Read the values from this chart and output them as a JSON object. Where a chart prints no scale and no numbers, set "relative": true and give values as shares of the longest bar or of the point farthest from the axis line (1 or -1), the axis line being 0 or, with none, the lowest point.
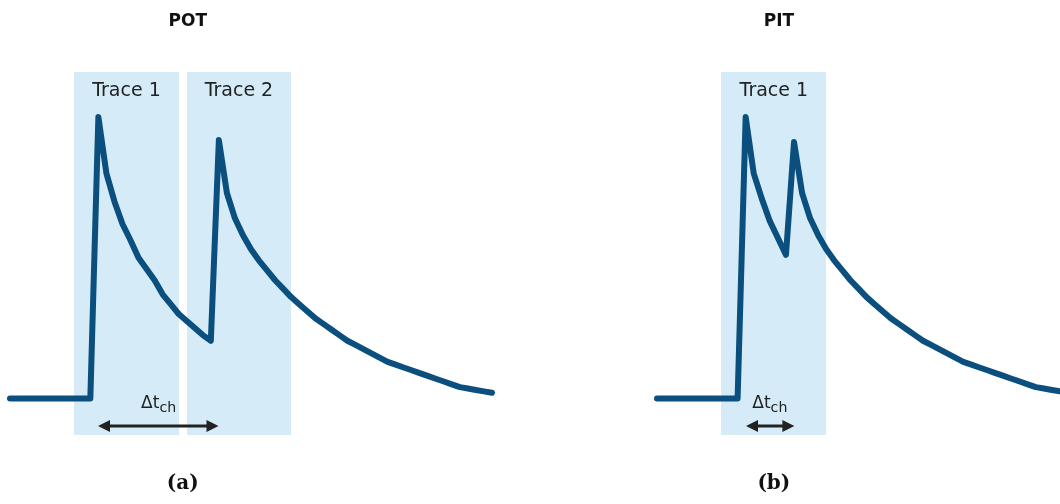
{
  "chart_data": [
    {
      "type": "line",
      "title": "POT",
      "relative": true,
      "marker": "none",
      "line_style": "solid",
      "categories": [
        null,
        null,
        null,
        null,
        null,
        null,
        null,
        null,
        null,
        null,
        null,
        null,
        null,
        null,
        null,
        null,
        null,
        null,
        null,
        null,
        null,
        null,
        null,
        null,
        null,
        null,
        null,
        null,
        null,
        null,
        null,
        null,
        null,
        null,
        null,
        null,
        null,
        null,
        null,
        null,
        null,
        null,
        null,
        null,
        null,
        null,
        null,
        null,
        null,
        null,
        null,
        null,
        null,
        null,
        null,
        null,
        null,
        null,
        null,
        null,
        null
      ],
      "series": [
        {
          "color": "#0a4f7e",
          "values": [
            0,
            0,
            0,
            0,
            0,
            0,
            0,
            0,
            0,
            0,
            0,
            1,
            0.8,
            0.7,
            0.62,
            0.562,
            0.5,
            0.46,
            0.42,
            0.37,
            0.335,
            0.3,
            0.275,
            0.25,
            0.225,
            0.205,
            0.918,
            0.73,
            0.64,
            0.58,
            0.53,
            0.49,
            0.455,
            0.42,
            0.39,
            0.36,
            0.335,
            0.31,
            0.285,
            0.265,
            0.245,
            0.225,
            0.205,
            0.19,
            0.175,
            0.16,
            0.145,
            0.13,
            0.12,
            0.11,
            0.1,
            0.09,
            0.08,
            0.07,
            0.06,
            0.05,
            0.04,
            0.035,
            0.03,
            0.025,
            0.02
          ]
        }
      ],
      "annotations": [
        "Trace 1",
        "Trace 2",
        "Δt$_{ch}$",
        "(a)"
      ]
    },
    {
      "type": "line",
      "title": "PIT",
      "relative": true,
      "marker": "none",
      "line_style": "solid",
      "categories": [
        null,
        null,
        null,
        null,
        null,
        null,
        null,
        null,
        null,
        null,
        null,
        null,
        null,
        null,
        null,
        null,
        null,
        null,
        null,
        null,
        null,
        null,
        null,
        null,
        null,
        null,
        null,
        null,
        null,
        null,
        null,
        null,
        null,
        null,
        null,
        null,
        null,
        null,
        null,
        null,
        null,
        null,
        null,
        null,
        null,
        null,
        null,
        null,
        null,
        null,
        null
      ],
      "series": [
        {
          "color": "#0a4f7e",
          "values": [
            0,
            0,
            0,
            0,
            0,
            0,
            0,
            0,
            0,
            0,
            0,
            1,
            0.8,
            0.71,
            0.63,
            0.57,
            0.51,
            0.911,
            0.73,
            0.64,
            0.58,
            0.53,
            0.49,
            0.455,
            0.42,
            0.39,
            0.36,
            0.335,
            0.31,
            0.285,
            0.265,
            0.245,
            0.225,
            0.205,
            0.19,
            0.175,
            0.16,
            0.145,
            0.13,
            0.12,
            0.11,
            0.1,
            0.09,
            0.08,
            0.07,
            0.06,
            0.05,
            0.04,
            0.035,
            0.03,
            0.025
          ]
        }
      ],
      "annotations": [
        "Trace 1",
        "Δt$_{ch}$",
        "(b)"
      ]
    }
  ]
}
